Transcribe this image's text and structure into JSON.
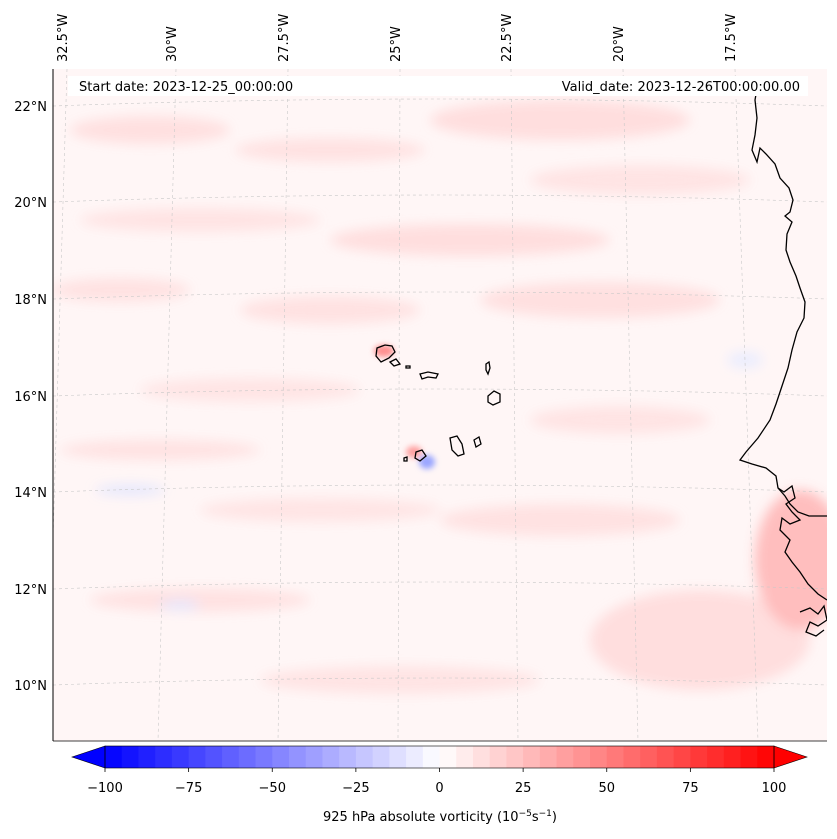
{
  "header": {
    "start_label": "Start date: 2023-12-25_00:00:00",
    "valid_label": "Valid_date: 2023-12-26T00:00:00.00"
  },
  "map": {
    "projection": "conic",
    "lat_range": [
      "9°N",
      "23°N"
    ],
    "lon_range": [
      "33°W",
      "16°W"
    ],
    "lon_ticks": [
      "32.5°W",
      "30°W",
      "27.5°W",
      "25°W",
      "22.5°W",
      "20°W",
      "17.5°W"
    ],
    "lat_ticks": [
      "22°N",
      "20°N",
      "18°N",
      "16°N",
      "14°N",
      "12°N",
      "10°N"
    ],
    "gridlines": "dashed light gray",
    "background_field": "faint positive vorticity (pale pink)",
    "coastline_color": "#000000"
  },
  "colorbar": {
    "label": "925 hPa absolute vorticity (10⁻⁵s⁻¹)",
    "label_prefix": "925 hPa absolute vorticity (10",
    "label_exp1": "−5",
    "label_mid": "s",
    "label_exp2": "−1",
    "label_suffix": ")",
    "ticks": [
      "−100",
      "−75",
      "−50",
      "−25",
      "0",
      "25",
      "50",
      "75",
      "100"
    ],
    "min": -100,
    "max": 100,
    "colormap": "bwr",
    "colors": {
      "low": "#0000ff",
      "mid": "#ffffff",
      "high": "#ff0000"
    }
  }
}
